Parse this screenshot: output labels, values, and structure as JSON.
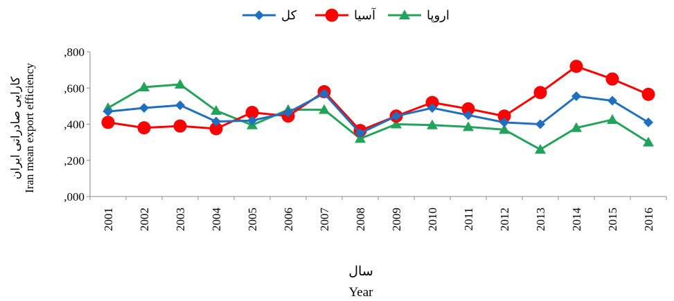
{
  "chart_data": {
    "type": "line",
    "categories": [
      "2001",
      "2002",
      "2003",
      "2004",
      "2005",
      "2006",
      "2007",
      "2008",
      "2009",
      "2010",
      "2011",
      "2012",
      "2013",
      "2014",
      "2015",
      "2016"
    ],
    "y_tick_labels": [
      ",000",
      ",200",
      ",400",
      ",600",
      ",800"
    ],
    "ylim": [
      0,
      0.8
    ],
    "ylabel_fa": "کارایی صادراتی ایران",
    "ylabel_en": "Iran mean export efficiency",
    "xlabel_fa": "سال",
    "xlabel_en": "Year",
    "legend_position": "top",
    "grid": false,
    "series": [
      {
        "name": "کل",
        "color": "#1f6fc1",
        "marker": "diamond",
        "values": [
          0.47,
          0.49,
          0.505,
          0.415,
          0.42,
          0.465,
          0.57,
          0.35,
          0.445,
          0.49,
          0.45,
          0.41,
          0.4,
          0.555,
          0.53,
          0.41
        ]
      },
      {
        "name": "آسیا",
        "color": "#ff0000",
        "marker": "circle",
        "values": [
          0.41,
          0.38,
          0.39,
          0.375,
          0.465,
          0.445,
          0.58,
          0.365,
          0.445,
          0.52,
          0.485,
          0.445,
          0.575,
          0.72,
          0.65,
          0.565
        ]
      },
      {
        "name": "اروپا",
        "color": "#22a35a",
        "marker": "triangle",
        "values": [
          0.49,
          0.605,
          0.62,
          0.475,
          0.395,
          0.48,
          0.48,
          0.32,
          0.4,
          0.395,
          0.385,
          0.37,
          0.26,
          0.38,
          0.425,
          0.3
        ]
      }
    ]
  }
}
